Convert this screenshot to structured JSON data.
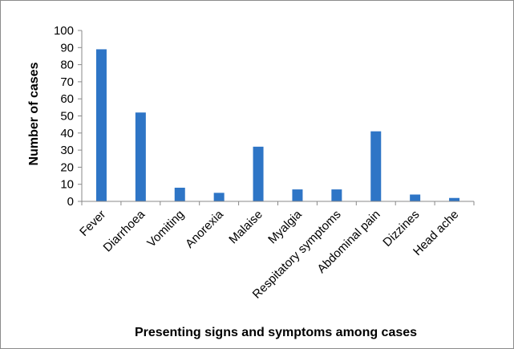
{
  "chart_data": {
    "type": "bar",
    "title": "",
    "xlabel": "Presenting signs and symptoms among cases",
    "ylabel": "Number of cases",
    "ylim": [
      0,
      100
    ],
    "yticks": [
      0,
      10,
      20,
      30,
      40,
      50,
      60,
      70,
      80,
      90,
      100
    ],
    "grid": false,
    "legend": "none",
    "categories": [
      "Fever",
      "Diarrhoea",
      "Vomiting",
      "Anorexia",
      "Malaise",
      "Myalgia",
      "Respitatory symptoms",
      "Abdominal pain",
      "Dizzines",
      "Head ache"
    ],
    "values": [
      89,
      52,
      8,
      5,
      32,
      7,
      7,
      41,
      4,
      2
    ],
    "bar_color": "#2E75C6"
  }
}
